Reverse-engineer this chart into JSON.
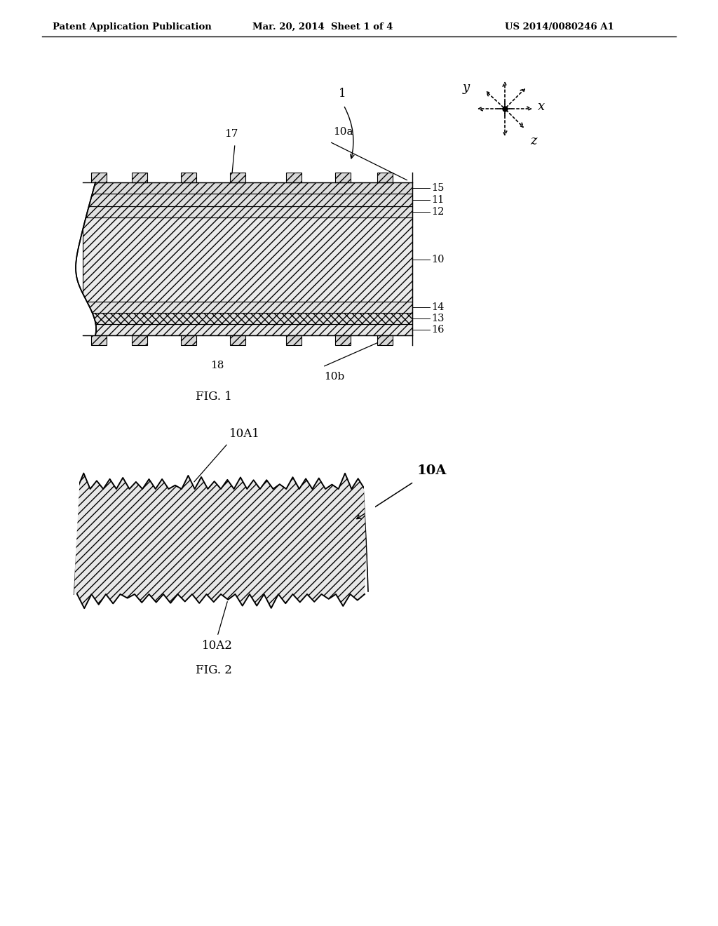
{
  "header_left": "Patent Application Publication",
  "header_mid": "Mar. 20, 2014  Sheet 1 of 4",
  "header_right": "US 2014/0080246 A1",
  "fig1_label": "FIG. 1",
  "fig2_label": "FIG. 2",
  "bg_color": "#ffffff",
  "line_color": "#000000",
  "layer_labels": [
    "15",
    "11",
    "12",
    "10",
    "14",
    "13",
    "16"
  ],
  "label_1": "1",
  "label_10a": "10a",
  "label_10b": "10b",
  "label_17": "17",
  "label_18": "18",
  "label_10A": "10A",
  "label_10A1": "10A1",
  "label_10A2": "10A2"
}
